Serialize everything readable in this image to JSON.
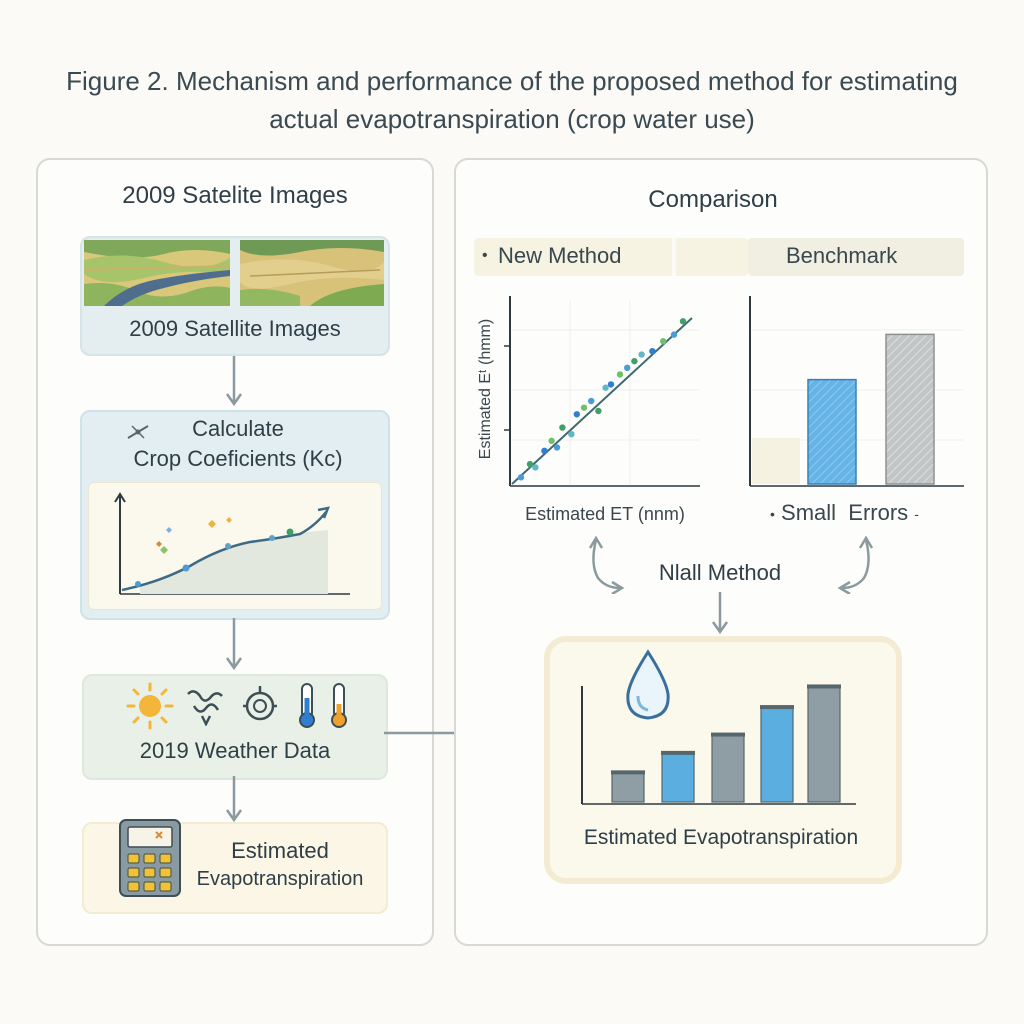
{
  "figure_title": "Figure 2. Mechanism and performance of the proposed method for estimating actual evapotranspiration (crop water use)",
  "left_panel": {
    "heading": "2009 Satelite Images",
    "satellite_label": "2009 Satellite Images",
    "kc_label_line1": "Calculate",
    "kc_label_line2": "Crop Coeficients (Kc)",
    "weather_label": "2019 Weather Data",
    "output_label_line1": "Estimated",
    "output_label_line2": "Evapotranspiration"
  },
  "right_panel": {
    "heading": "Comparison",
    "tab_new_method": "New Method",
    "tab_benchmark": "Benchmark",
    "scatter_ylabel": "Estimated Eᵗ (hmm)",
    "scatter_xlabel": "Estimated ET (nnm)",
    "errors_label": "Small  Errors",
    "method_label": "Nlall Method",
    "result_label": "Estimated Evapotranspiration"
  },
  "colors": {
    "accent_blue": "#5aaee0",
    "gray_bar": "#8f9ea5",
    "arrow_gray": "#8a9a9e",
    "sun": "#f3b53a"
  },
  "icons": {
    "sun": "sun-icon",
    "wind": "wind-icon",
    "humidity": "gauge-icon",
    "thermometer_cold": "thermometer-blue-icon",
    "thermometer_warm": "thermometer-orange-icon",
    "calculator": "calculator-icon",
    "water_drop": "water-drop-icon"
  },
  "chart_data": [
    {
      "type": "scatter",
      "xlabel": "Estimated ET (nnm)",
      "ylabel": "Estimated Eᵗ (hmm)",
      "x": [
        0.05,
        0.1,
        0.13,
        0.18,
        0.22,
        0.25,
        0.28,
        0.33,
        0.36,
        0.4,
        0.44,
        0.48,
        0.52,
        0.55,
        0.6,
        0.64,
        0.68,
        0.72,
        0.78,
        0.84,
        0.9,
        0.95
      ],
      "y": [
        0.04,
        0.12,
        0.1,
        0.2,
        0.26,
        0.22,
        0.34,
        0.3,
        0.42,
        0.46,
        0.5,
        0.44,
        0.58,
        0.6,
        0.66,
        0.7,
        0.74,
        0.78,
        0.8,
        0.86,
        0.9,
        0.98
      ],
      "trend": "1:1 line"
    },
    {
      "type": "bar",
      "categories": [
        "New Method",
        "Benchmark"
      ],
      "values": [
        0.6,
        0.86
      ],
      "ylim": [
        0,
        1
      ]
    },
    {
      "type": "bar",
      "values": [
        0.25,
        0.42,
        0.58,
        0.82,
        1.0
      ],
      "ylim": [
        0,
        1.1
      ]
    }
  ]
}
